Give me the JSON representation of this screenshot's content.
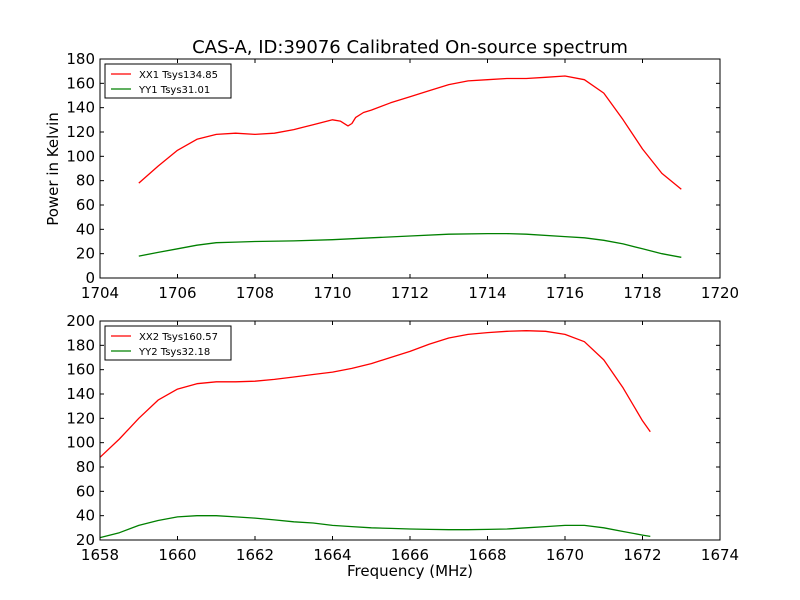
{
  "figure": {
    "title": "CAS-A, ID:39076 Calibrated On-source spectrum",
    "ylabel": "Power in Kelvin",
    "xlabel": "Frequency (MHz)"
  },
  "colors": {
    "red": "#ff0000",
    "green": "#008000",
    "axis": "#000000"
  },
  "chart_data": [
    {
      "type": "line",
      "title": "CAS-A, ID:39076 Calibrated On-source spectrum",
      "ylabel": "Power in Kelvin",
      "xlabel": "",
      "xlim": [
        1704,
        1720
      ],
      "ylim": [
        0,
        180
      ],
      "xticks": [
        1704,
        1706,
        1708,
        1710,
        1712,
        1714,
        1716,
        1718,
        1720
      ],
      "yticks": [
        0,
        20,
        40,
        60,
        80,
        100,
        120,
        140,
        160,
        180
      ],
      "legend": "top-left",
      "grid": false,
      "series": [
        {
          "name": "XX1 Tsys134.85",
          "color": "#ff0000",
          "x": [
            1705.0,
            1705.5,
            1706.0,
            1706.5,
            1707.0,
            1707.5,
            1708.0,
            1708.5,
            1709.0,
            1709.5,
            1710.0,
            1710.2,
            1710.4,
            1710.5,
            1710.6,
            1710.8,
            1711.0,
            1711.5,
            1712.0,
            1712.5,
            1713.0,
            1713.5,
            1714.0,
            1714.5,
            1715.0,
            1715.5,
            1716.0,
            1716.5,
            1717.0,
            1717.5,
            1718.0,
            1718.5,
            1719.0
          ],
          "y": [
            78,
            92,
            105,
            114,
            118,
            119,
            118,
            119,
            122,
            126,
            130,
            129,
            125,
            127,
            132,
            136,
            138,
            144,
            149,
            154,
            159,
            162,
            163,
            164,
            164,
            165,
            166,
            163,
            152,
            130,
            106,
            86,
            73
          ]
        },
        {
          "name": "YY1 Tsys31.01",
          "color": "#008000",
          "x": [
            1705.0,
            1705.5,
            1706.0,
            1706.5,
            1707.0,
            1707.5,
            1708.0,
            1709.0,
            1710.0,
            1711.0,
            1712.0,
            1713.0,
            1714.0,
            1714.5,
            1715.0,
            1716.0,
            1716.5,
            1717.0,
            1717.5,
            1718.0,
            1718.5,
            1719.0
          ],
          "y": [
            18,
            21,
            24,
            27,
            29,
            29.5,
            30,
            30.5,
            31.5,
            33,
            34.5,
            36,
            36.5,
            36.5,
            36,
            34,
            33,
            31,
            28,
            24,
            20,
            17
          ]
        }
      ]
    },
    {
      "type": "line",
      "title": "",
      "ylabel": "",
      "xlabel": "Frequency (MHz)",
      "xlim": [
        1658,
        1674
      ],
      "ylim": [
        20,
        200
      ],
      "xticks": [
        1658,
        1660,
        1662,
        1664,
        1666,
        1668,
        1670,
        1672,
        1674
      ],
      "yticks": [
        20,
        40,
        60,
        80,
        100,
        120,
        140,
        160,
        180,
        200
      ],
      "legend": "top-left",
      "grid": false,
      "series": [
        {
          "name": "XX2 Tsys160.57",
          "color": "#ff0000",
          "x": [
            1658.0,
            1658.5,
            1659.0,
            1659.5,
            1660.0,
            1660.5,
            1661.0,
            1661.5,
            1662.0,
            1662.5,
            1663.0,
            1663.5,
            1664.0,
            1664.5,
            1665.0,
            1665.5,
            1666.0,
            1666.5,
            1667.0,
            1667.5,
            1668.0,
            1668.5,
            1669.0,
            1669.5,
            1670.0,
            1670.5,
            1671.0,
            1671.5,
            1672.0,
            1672.2
          ],
          "y": [
            88,
            103,
            120,
            135,
            144,
            148.5,
            150,
            150,
            150.5,
            152,
            154,
            156,
            158,
            161,
            165,
            170,
            175,
            181,
            186,
            189,
            190.5,
            191.5,
            192,
            191.5,
            189,
            183,
            168,
            145,
            118,
            109
          ]
        },
        {
          "name": "YY2 Tsys32.18",
          "color": "#008000",
          "x": [
            1658.0,
            1658.5,
            1659.0,
            1659.5,
            1660.0,
            1660.5,
            1661.0,
            1661.5,
            1662.0,
            1662.5,
            1663.0,
            1663.5,
            1664.0,
            1664.5,
            1665.0,
            1665.5,
            1666.0,
            1666.5,
            1667.0,
            1667.5,
            1668.0,
            1668.5,
            1669.0,
            1669.5,
            1670.0,
            1670.5,
            1671.0,
            1671.5,
            1672.0,
            1672.2
          ],
          "y": [
            22,
            26,
            32,
            36,
            39,
            40,
            40,
            39,
            38,
            36.5,
            35,
            34,
            32,
            31,
            30,
            29.5,
            29,
            28.7,
            28.5,
            28.5,
            28.7,
            29,
            30,
            31,
            32,
            32,
            30,
            27,
            24,
            23
          ]
        }
      ]
    }
  ]
}
